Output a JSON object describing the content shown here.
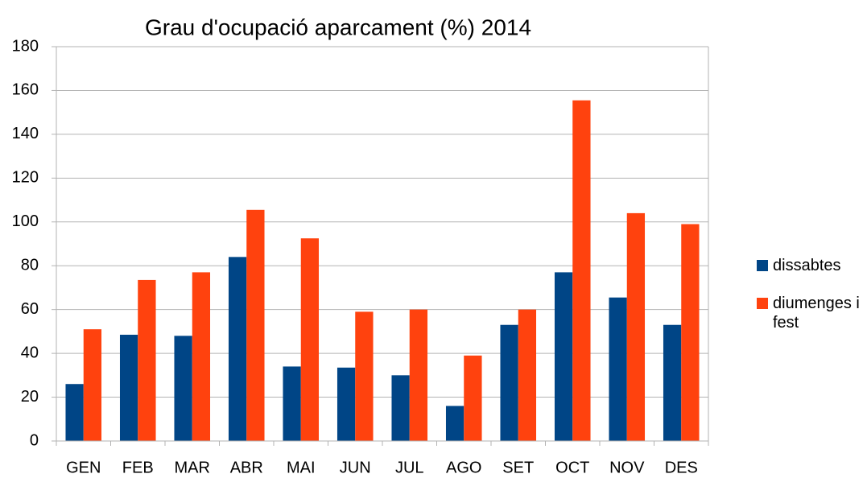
{
  "chart_data": {
    "type": "bar",
    "title": "Grau d'ocupació aparcament (%) 2014",
    "categories": [
      "GEN",
      "FEB",
      "MAR",
      "ABR",
      "MAI",
      "JUN",
      "JUL",
      "AGO",
      "SET",
      "OCT",
      "NOV",
      "DES"
    ],
    "series": [
      {
        "name": "dissabtes",
        "color": "#004586",
        "values": [
          26,
          48.5,
          48,
          84,
          34,
          33.5,
          30,
          16,
          53,
          77,
          65.5,
          53
        ]
      },
      {
        "name": "diumenges i fest",
        "color": "#ff420e",
        "values": [
          51,
          73.5,
          77,
          105.5,
          92.5,
          59,
          60,
          39,
          60,
          155.5,
          104,
          99
        ]
      }
    ],
    "ylim": [
      0,
      180
    ],
    "yticks": [
      0,
      20,
      40,
      60,
      80,
      100,
      120,
      140,
      160,
      180
    ],
    "grid": true,
    "legend": "right"
  }
}
